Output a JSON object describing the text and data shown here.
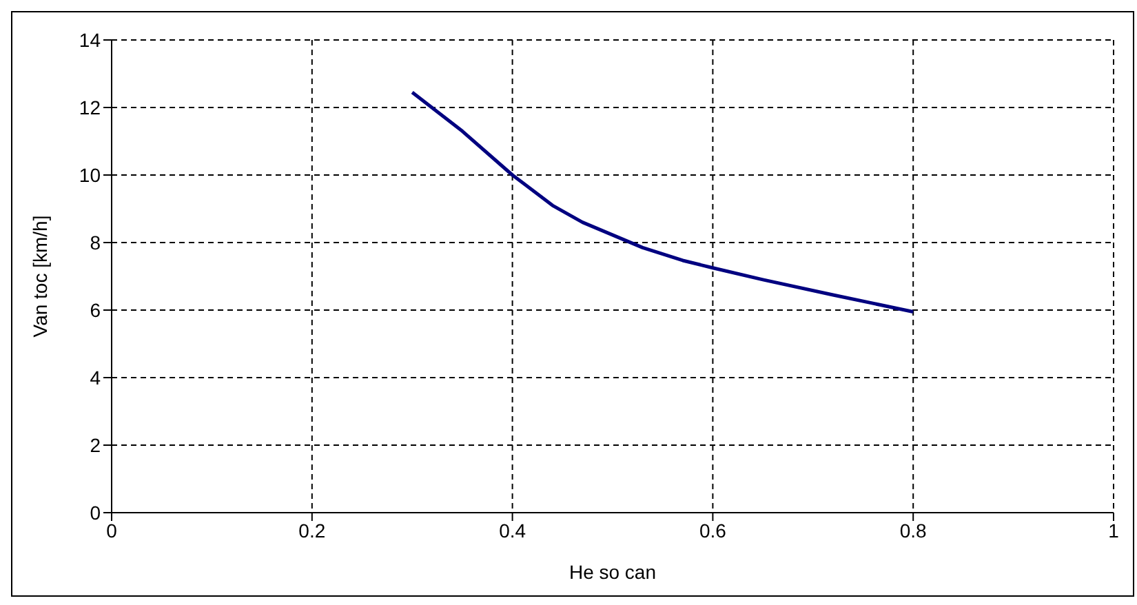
{
  "chart_data": {
    "type": "line",
    "xlabel": "He so can",
    "ylabel": "Van toc [km/h]",
    "x": [
      0.3,
      0.35,
      0.4,
      0.44,
      0.47,
      0.53,
      0.57,
      0.6,
      0.65,
      0.72,
      0.8
    ],
    "series": [
      {
        "color": "#000080",
        "values": [
          12.45,
          11.3,
          10.0,
          9.1,
          8.6,
          7.85,
          7.47,
          7.25,
          6.9,
          6.45,
          5.95
        ]
      }
    ],
    "xlim": [
      0,
      1
    ],
    "xticks": [
      0,
      0.2,
      0.4,
      0.6,
      0.8,
      1
    ],
    "ylim": [
      0,
      14
    ],
    "yticks": [
      0,
      2,
      4,
      6,
      8,
      10,
      12,
      14
    ],
    "grid": true,
    "legend": false,
    "marker": "none",
    "line_style": "solid"
  }
}
